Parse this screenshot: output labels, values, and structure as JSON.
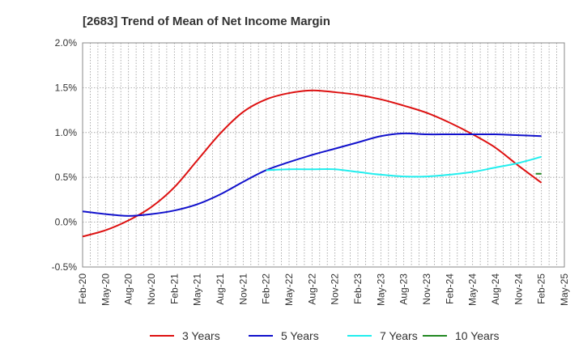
{
  "chart_data": {
    "type": "line",
    "title": "[2683]  Trend of Mean of Net Income Margin",
    "xlabel": "",
    "ylabel": "",
    "x": [
      "Feb-20",
      "May-20",
      "Aug-20",
      "Nov-20",
      "Feb-21",
      "May-21",
      "Aug-21",
      "Nov-21",
      "Feb-22",
      "May-22",
      "Aug-22",
      "Nov-22",
      "Feb-23",
      "May-23",
      "Aug-23",
      "Nov-23",
      "Feb-24",
      "May-24",
      "Aug-24",
      "Nov-24",
      "Feb-25",
      "May-25"
    ],
    "ylim": [
      -0.5,
      2.0
    ],
    "yticks": [
      -0.5,
      0.0,
      0.5,
      1.0,
      1.5,
      2.0
    ],
    "ytick_labels": [
      "-0.5%",
      "0.0%",
      "0.5%",
      "1.0%",
      "1.5%",
      "2.0%"
    ],
    "grid": true,
    "legend_position": "bottom",
    "series": [
      {
        "name": "3 Years",
        "color": "#dd1111",
        "values": [
          -0.16,
          -0.09,
          0.02,
          0.17,
          0.39,
          0.69,
          0.99,
          1.23,
          1.37,
          1.44,
          1.47,
          1.45,
          1.42,
          1.37,
          1.3,
          1.22,
          1.11,
          0.98,
          0.83,
          0.63,
          0.44,
          null
        ]
      },
      {
        "name": "5 Years",
        "color": "#1111cc",
        "values": [
          0.12,
          0.09,
          0.07,
          0.09,
          0.13,
          0.2,
          0.31,
          0.45,
          0.58,
          0.67,
          0.75,
          0.82,
          0.89,
          0.96,
          0.99,
          0.98,
          0.98,
          0.98,
          0.98,
          0.97,
          0.96,
          null
        ]
      },
      {
        "name": "7 Years",
        "color": "#22eeee",
        "values": [
          null,
          null,
          null,
          null,
          null,
          null,
          null,
          null,
          0.58,
          0.59,
          0.59,
          0.59,
          0.56,
          0.53,
          0.51,
          0.51,
          0.53,
          0.56,
          0.61,
          0.66,
          0.73,
          null
        ]
      },
      {
        "name": "10 Years",
        "color": "#228822",
        "values": [
          null,
          null,
          null,
          null,
          null,
          null,
          null,
          null,
          null,
          null,
          null,
          null,
          null,
          null,
          null,
          null,
          null,
          null,
          null,
          null,
          0.54,
          null
        ],
        "last_segment_from_x": 19.75
      }
    ]
  }
}
